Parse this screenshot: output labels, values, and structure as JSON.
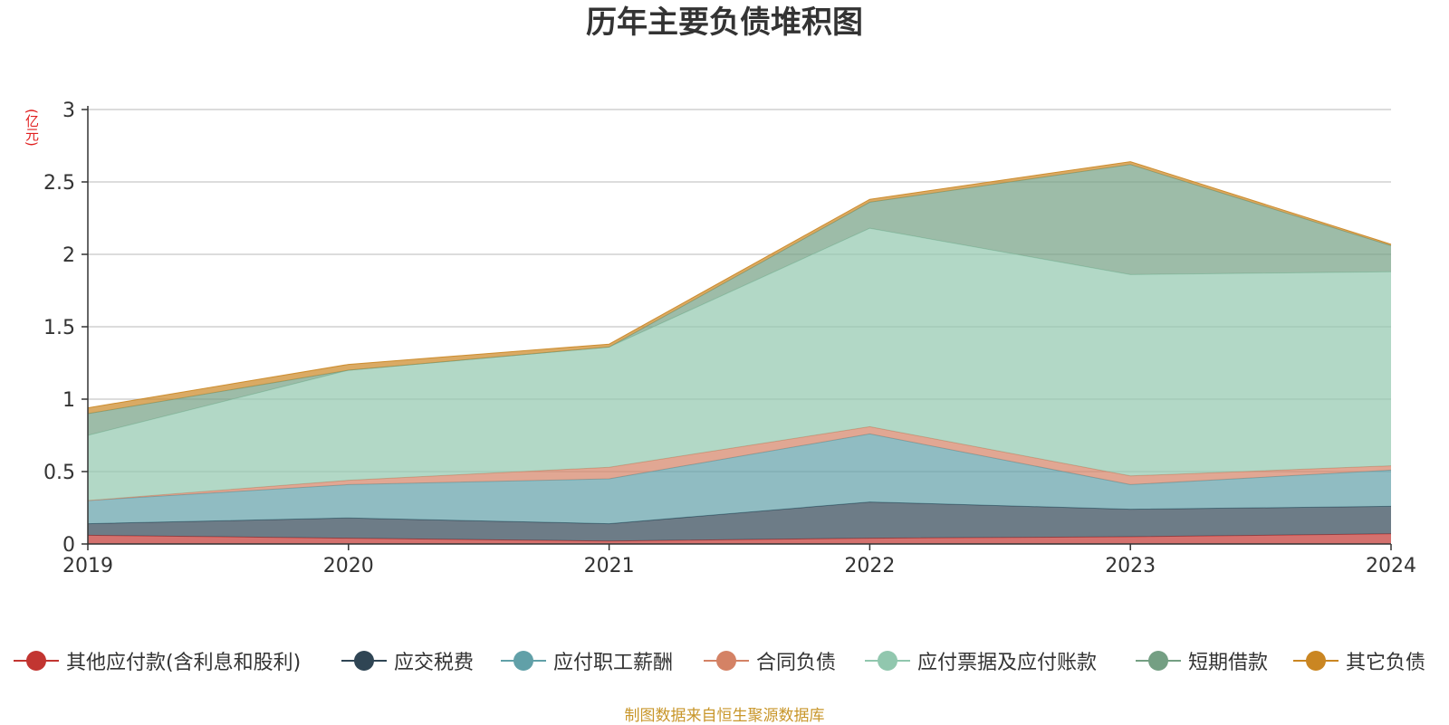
{
  "chart_data": {
    "type": "area",
    "stacked": true,
    "title": "历年主要负债堆积图",
    "unit": "(亿元)",
    "x": [
      "2019",
      "2020",
      "2021",
      "2022",
      "2023",
      "2024"
    ],
    "ylim": [
      0,
      3
    ],
    "yticks": [
      "0",
      "0.5",
      "1",
      "1.5",
      "2",
      "2.5",
      "3"
    ],
    "grid": true,
    "legend_position": "bottom",
    "series": [
      {
        "name": "其他应付款(含利息和股利)",
        "color": "#c23531",
        "values": [
          0.06,
          0.04,
          0.02,
          0.04,
          0.05,
          0.07
        ]
      },
      {
        "name": "应交税费",
        "color": "#2f4554",
        "values": [
          0.08,
          0.14,
          0.12,
          0.25,
          0.19,
          0.19
        ]
      },
      {
        "name": "应付职工薪酬",
        "color": "#61a0a8",
        "values": [
          0.16,
          0.23,
          0.31,
          0.47,
          0.17,
          0.25
        ]
      },
      {
        "name": "合同负债",
        "color": "#d48265",
        "values": [
          0.0,
          0.03,
          0.08,
          0.05,
          0.06,
          0.03
        ]
      },
      {
        "name": "应付票据及应付账款",
        "color": "#91c7ae",
        "values": [
          0.45,
          0.76,
          0.83,
          1.37,
          1.39,
          1.34
        ]
      },
      {
        "name": "短期借款",
        "color": "#749f83",
        "values": [
          0.15,
          0.0,
          0.0,
          0.18,
          0.76,
          0.18
        ]
      },
      {
        "name": "其它负债",
        "color": "#ca8622",
        "values": [
          0.04,
          0.04,
          0.02,
          0.02,
          0.02,
          0.01
        ]
      }
    ]
  },
  "source_note": "制图数据来自恒生聚源数据库"
}
